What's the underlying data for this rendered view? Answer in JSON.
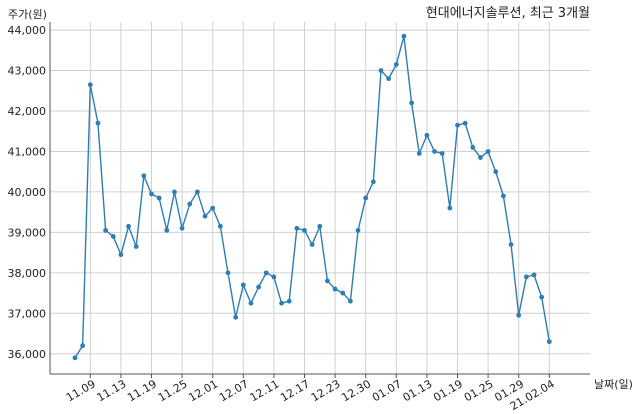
{
  "chart_data": {
    "type": "line",
    "title": "현대에너지솔루션, 최근 3개월",
    "ylabel": "주가(원)",
    "xlabel": "날짜(일)",
    "ylim": [
      35500,
      44200
    ],
    "y_ticks": [
      36000,
      37000,
      38000,
      39000,
      40000,
      41000,
      42000,
      43000,
      44000
    ],
    "y_tick_labels": [
      "36,000",
      "37,000",
      "38,000",
      "39,000",
      "40,000",
      "41,000",
      "42,000",
      "43,000",
      "44,000"
    ],
    "x_tick_labels": [
      "11.09",
      "11.13",
      "11.19",
      "11.25",
      "12.01",
      "12.07",
      "12.11",
      "12.17",
      "12.23",
      "12.30",
      "01.07",
      "01.13",
      "01.19",
      "01.25",
      "01.29",
      "21.02.04"
    ],
    "x_tick_index": [
      2,
      6,
      10,
      14,
      18,
      22,
      26,
      30,
      34,
      38,
      42,
      46,
      50,
      54,
      58,
      62
    ],
    "grid": true,
    "color": "#2e7db3",
    "series": [
      {
        "values": [
          35900,
          36200,
          42650,
          41700,
          39050,
          38900,
          38450,
          39150,
          38650,
          40400,
          39950,
          39850,
          39050,
          40000,
          39100,
          39700,
          40000,
          39400,
          39600,
          39150,
          38000,
          36900,
          37700,
          37250,
          37650,
          38000,
          37900,
          37250,
          37300,
          39100,
          39050,
          38700,
          39150,
          37800,
          37600,
          37500,
          37300,
          39050,
          39850,
          40250,
          43000,
          42800,
          43150,
          43850,
          42200,
          40950,
          41400,
          41000,
          40950,
          39600,
          41650,
          41700,
          41100,
          40850,
          41000,
          40500,
          39900,
          38700,
          36950,
          37900,
          37950,
          37400,
          36300
        ]
      }
    ]
  }
}
